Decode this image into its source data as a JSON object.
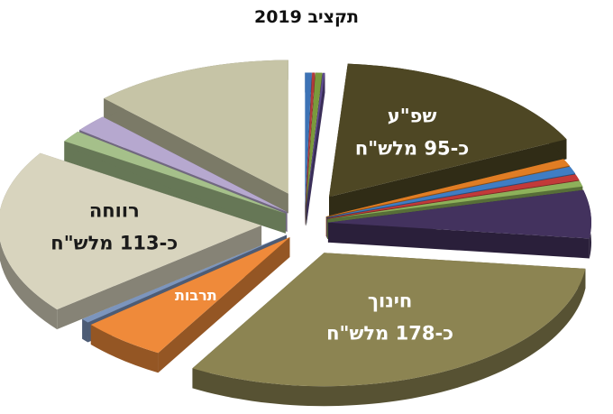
{
  "chart_data": {
    "type": "pie",
    "style": "exploded-3d",
    "title": "תקציב 2019",
    "slices": [
      {
        "name": "",
        "value": 2.3,
        "color": "#3d73b6"
      },
      {
        "name": "",
        "value": 1.0,
        "color": "#b13a3a"
      },
      {
        "name": "",
        "value": 2.3,
        "color": "#7a9a3c"
      },
      {
        "name": "",
        "value": 0.8,
        "color": "#5e4a8e"
      },
      {
        "name": "שפ\"ע",
        "value_label": "כ-95 מלש\"ח",
        "value": 95,
        "color": "#4e4724"
      },
      {
        "name": "",
        "value": 5,
        "color": "#e07d24"
      },
      {
        "name": "",
        "value": 5,
        "color": "#3f7dc4"
      },
      {
        "name": "",
        "value": 4,
        "color": "#c23a39"
      },
      {
        "name": "",
        "value": 4,
        "color": "#8db15a"
      },
      {
        "name": "",
        "value": 33,
        "color": "#43325e"
      },
      {
        "name": "חינוך",
        "value_label": "כ-178 מלש\"ח",
        "value": 178,
        "color": "#8c8452"
      },
      {
        "name": "תרבות",
        "value": 30,
        "color": "#ef8a3a"
      },
      {
        "name": "",
        "value": 3,
        "color": "#7c95bd"
      },
      {
        "name": "רווחה",
        "value_label": "כ-113 מלש\"ח",
        "value": 113,
        "color": "#d8d4be"
      },
      {
        "name": "",
        "value": 8,
        "color": "#a5c08a"
      },
      {
        "name": "",
        "value": 12,
        "color": "#b6a8cf"
      },
      {
        "name": "",
        "value": 70,
        "color": "#c6c4a6"
      }
    ]
  }
}
